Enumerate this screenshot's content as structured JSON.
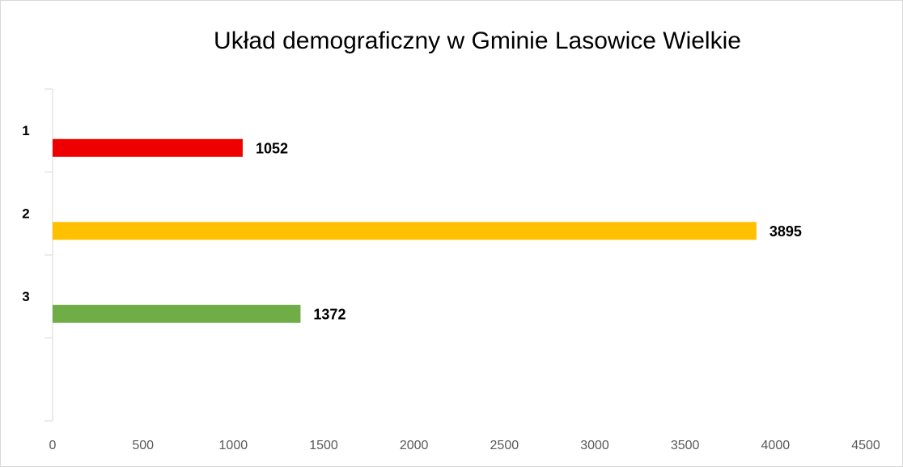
{
  "chart_data": {
    "type": "bar",
    "orientation": "horizontal",
    "title": "Układ demograficzny w Gminie Lasowice Wielkie",
    "categories": [
      "1",
      "2",
      "3",
      null
    ],
    "values": [
      1052,
      3895,
      1372,
      null
    ],
    "colors": [
      "#ee0000",
      "#ffc000",
      "#70ad47",
      null
    ],
    "xlim": [
      0,
      4500
    ],
    "xticks": [
      0,
      500,
      1000,
      1500,
      2000,
      2500,
      3000,
      3500,
      4000,
      4500
    ],
    "grid": false
  }
}
